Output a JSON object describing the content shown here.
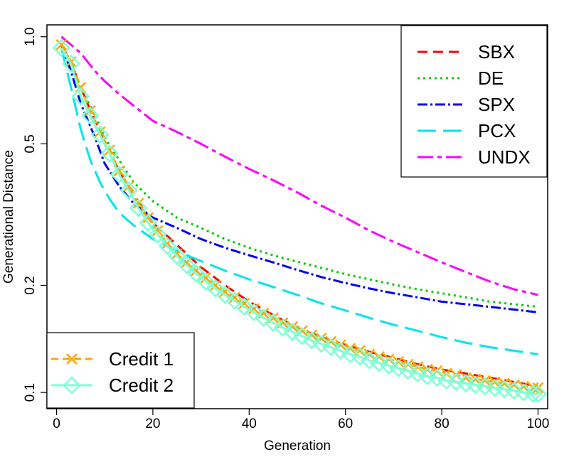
{
  "chart_data": {
    "type": "line",
    "title": "",
    "xlabel": "Generation",
    "ylabel": "Generational Distance",
    "xlim": [
      -2,
      102
    ],
    "ylim": [
      0.09,
      1.08
    ],
    "y_scale": "log",
    "x_ticks": [
      0,
      20,
      40,
      60,
      80,
      100
    ],
    "x_tick_labels": [
      "0",
      "20",
      "40",
      "60",
      "80",
      "100"
    ],
    "y_ticks": [
      0.1,
      0.2,
      0.5,
      1.0
    ],
    "y_tick_labels": [
      "0.1",
      "0.2",
      "0.5",
      "1.0"
    ],
    "grid": false,
    "legends": [
      {
        "placement": "top-right",
        "entries": [
          "SBX",
          "DE",
          "SPX",
          "PCX",
          "UNDX"
        ]
      },
      {
        "placement": "bottom-left",
        "entries": [
          "Credit 1",
          "Credit 2"
        ]
      }
    ],
    "series": [
      {
        "name": "SBX",
        "color": "#ff0000",
        "dash": "14,8",
        "marker": "none",
        "x": [
          1,
          3,
          5,
          8,
          10,
          13,
          16,
          20,
          25,
          30,
          35,
          40,
          45,
          50,
          55,
          60,
          65,
          70,
          75,
          80,
          85,
          90,
          95,
          100
        ],
        "y": [
          0.95,
          0.85,
          0.72,
          0.58,
          0.5,
          0.42,
          0.36,
          0.3,
          0.26,
          0.225,
          0.2,
          0.18,
          0.165,
          0.152,
          0.143,
          0.136,
          0.13,
          0.125,
          0.12,
          0.116,
          0.113,
          0.11,
          0.107,
          0.104
        ]
      },
      {
        "name": "DE",
        "color": "#00cc00",
        "dash": "3,5",
        "marker": "none",
        "x": [
          1,
          3,
          5,
          8,
          10,
          13,
          16,
          20,
          25,
          30,
          35,
          40,
          45,
          50,
          55,
          60,
          65,
          70,
          75,
          80,
          85,
          90,
          95,
          100
        ],
        "y": [
          0.95,
          0.85,
          0.72,
          0.6,
          0.52,
          0.45,
          0.39,
          0.345,
          0.31,
          0.29,
          0.27,
          0.255,
          0.243,
          0.233,
          0.224,
          0.215,
          0.208,
          0.201,
          0.195,
          0.19,
          0.185,
          0.18,
          0.177,
          0.174
        ]
      },
      {
        "name": "SPX",
        "color": "#0000ee",
        "dash": "14,4,3,4",
        "marker": "none",
        "x": [
          1,
          3,
          5,
          8,
          10,
          13,
          16,
          20,
          25,
          30,
          35,
          40,
          45,
          50,
          55,
          60,
          65,
          70,
          75,
          80,
          85,
          90,
          95,
          100
        ],
        "y": [
          0.95,
          0.8,
          0.65,
          0.52,
          0.44,
          0.38,
          0.34,
          0.31,
          0.29,
          0.27,
          0.255,
          0.243,
          0.232,
          0.221,
          0.211,
          0.203,
          0.196,
          0.19,
          0.185,
          0.18,
          0.177,
          0.174,
          0.171,
          0.168
        ]
      },
      {
        "name": "PCX",
        "color": "#00e5ee",
        "dash": "26,10",
        "marker": "none",
        "x": [
          1,
          3,
          5,
          7,
          9,
          11,
          13,
          16,
          20,
          25,
          30,
          35,
          40,
          45,
          50,
          55,
          60,
          65,
          70,
          75,
          80,
          85,
          90,
          95,
          100
        ],
        "y": [
          0.93,
          0.72,
          0.55,
          0.45,
          0.39,
          0.35,
          0.32,
          0.295,
          0.27,
          0.25,
          0.234,
          0.22,
          0.208,
          0.198,
          0.188,
          0.178,
          0.17,
          0.162,
          0.155,
          0.149,
          0.143,
          0.138,
          0.134,
          0.131,
          0.128
        ]
      },
      {
        "name": "UNDX",
        "color": "#ff00ff",
        "dash": "22,6,6,6",
        "marker": "none",
        "x": [
          1,
          3,
          5,
          8,
          10,
          13,
          16,
          20,
          25,
          30,
          35,
          40,
          45,
          50,
          55,
          60,
          65,
          70,
          75,
          80,
          85,
          90,
          95,
          100
        ],
        "y": [
          1.0,
          0.95,
          0.9,
          0.8,
          0.75,
          0.69,
          0.64,
          0.58,
          0.54,
          0.5,
          0.46,
          0.425,
          0.395,
          0.365,
          0.335,
          0.31,
          0.285,
          0.265,
          0.248,
          0.232,
          0.218,
          0.205,
          0.195,
          0.188
        ]
      },
      {
        "name": "Credit 1",
        "color": "#ffa500",
        "dash": "10,6",
        "marker": "x",
        "x": [
          1,
          3,
          5,
          7,
          9,
          11,
          13,
          15,
          17,
          19,
          21,
          23,
          25,
          27,
          29,
          31,
          33,
          35,
          37,
          39,
          41,
          43,
          45,
          47,
          49,
          51,
          53,
          55,
          57,
          59,
          61,
          63,
          65,
          67,
          69,
          71,
          73,
          75,
          77,
          79,
          81,
          83,
          85,
          87,
          89,
          91,
          93,
          95,
          97,
          99,
          100
        ],
        "y": [
          0.95,
          0.85,
          0.72,
          0.62,
          0.54,
          0.48,
          0.42,
          0.38,
          0.34,
          0.31,
          0.285,
          0.262,
          0.245,
          0.232,
          0.22,
          0.21,
          0.2,
          0.192,
          0.185,
          0.178,
          0.172,
          0.167,
          0.162,
          0.157,
          0.153,
          0.149,
          0.145,
          0.142,
          0.139,
          0.136,
          0.133,
          0.131,
          0.128,
          0.126,
          0.124,
          0.122,
          0.12,
          0.118,
          0.116,
          0.115,
          0.113,
          0.112,
          0.11,
          0.109,
          0.108,
          0.107,
          0.106,
          0.105,
          0.104,
          0.103,
          0.103
        ]
      },
      {
        "name": "Credit 2",
        "color": "#7fffd4",
        "dash": "",
        "marker": "diamond",
        "x": [
          1,
          3,
          5,
          7,
          9,
          11,
          13,
          15,
          17,
          19,
          21,
          23,
          25,
          27,
          29,
          31,
          33,
          35,
          37,
          39,
          41,
          43,
          45,
          47,
          49,
          51,
          53,
          55,
          57,
          59,
          61,
          63,
          65,
          67,
          69,
          71,
          73,
          75,
          77,
          79,
          81,
          83,
          85,
          87,
          89,
          91,
          93,
          95,
          97,
          99,
          100
        ],
        "y": [
          0.93,
          0.84,
          0.68,
          0.6,
          0.53,
          0.47,
          0.41,
          0.37,
          0.33,
          0.3,
          0.278,
          0.258,
          0.242,
          0.228,
          0.216,
          0.205,
          0.196,
          0.188,
          0.181,
          0.174,
          0.168,
          0.162,
          0.157,
          0.152,
          0.148,
          0.144,
          0.14,
          0.137,
          0.134,
          0.131,
          0.128,
          0.126,
          0.123,
          0.121,
          0.119,
          0.117,
          0.115,
          0.113,
          0.111,
          0.11,
          0.108,
          0.107,
          0.106,
          0.105,
          0.104,
          0.103,
          0.102,
          0.101,
          0.1,
          0.099,
          0.099
        ]
      }
    ]
  }
}
